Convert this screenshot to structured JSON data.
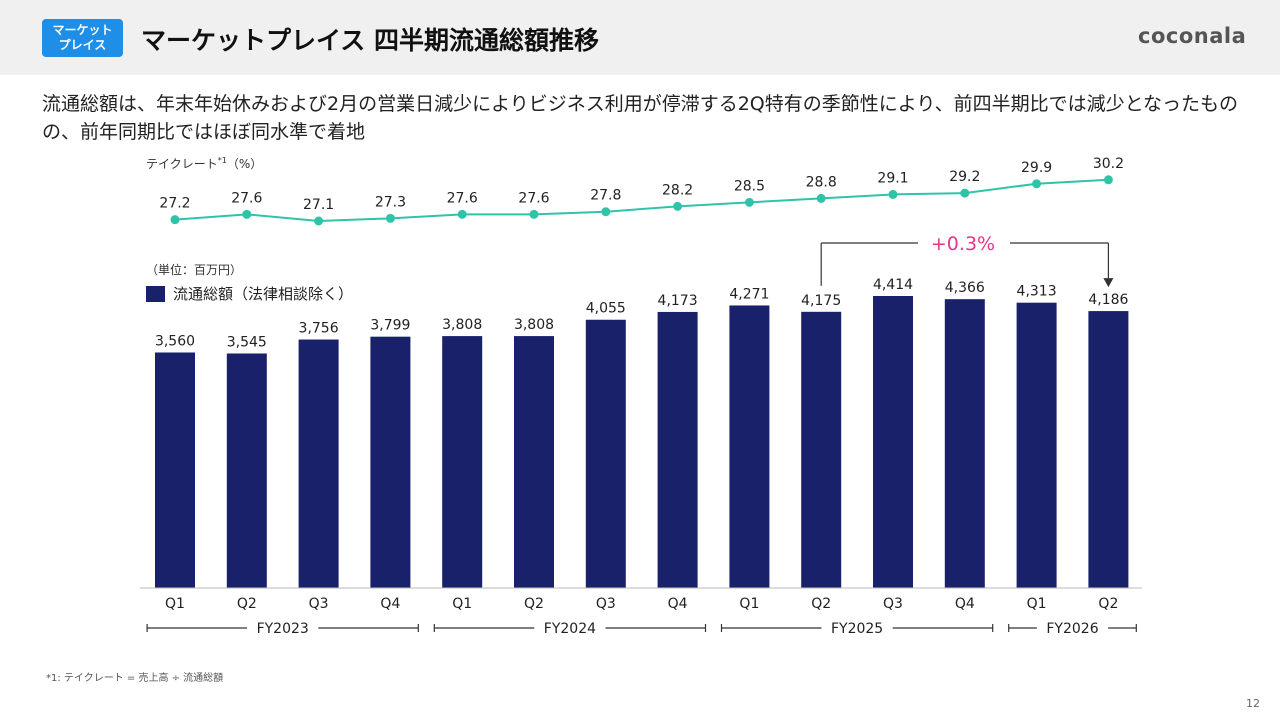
{
  "header": {
    "badge_line1": "マーケット",
    "badge_line2": "プレイス",
    "title": "マーケットプレイス 四半期流通総額推移",
    "logo": "coconala"
  },
  "headline": "流通総額は、年末年始休みおよび2月の営業日減少によりビジネス利用が停滞する2Q特有の季節性により、前四半期比では減少となったものの、前年同期比ではほぼ同水準で着地",
  "take_rate_label": "テイクレート",
  "take_rate_note": "*1",
  "take_rate_unit": "（%）",
  "unit_label": "（単位：百万円）",
  "annotation": "+0.3%",
  "footnote": "*1: テイクレート = 売上高 ÷ 流通総額",
  "page_number": "12",
  "colors": {
    "bar": "#1a216b",
    "line": "#2ec4a8",
    "annotation": "#e8358a",
    "badge": "#1e8ee6",
    "header_bg": "#f0f0f0"
  },
  "chart_data": [
    {
      "type": "line",
      "categories": [
        "Q1",
        "Q2",
        "Q3",
        "Q4",
        "Q1",
        "Q2",
        "Q3",
        "Q4",
        "Q1",
        "Q2",
        "Q3",
        "Q4",
        "Q1",
        "Q2"
      ],
      "series": [
        {
          "name": "テイクレート",
          "values": [
            27.2,
            27.6,
            27.1,
            27.3,
            27.6,
            27.6,
            27.8,
            28.2,
            28.5,
            28.8,
            29.1,
            29.2,
            29.9,
            30.2
          ],
          "labels": [
            "27.2",
            "27.6",
            "27.1",
            "27.3",
            "27.6",
            "27.6",
            "27.8",
            "28.2",
            "28.5",
            "28.8",
            "29.1",
            "29.2",
            "29.9",
            "30.2"
          ]
        }
      ],
      "ylabel": "（%）"
    },
    {
      "type": "bar",
      "categories": [
        "Q1",
        "Q2",
        "Q3",
        "Q4",
        "Q1",
        "Q2",
        "Q3",
        "Q4",
        "Q1",
        "Q2",
        "Q3",
        "Q4",
        "Q1",
        "Q2"
      ],
      "groups": [
        {
          "label": "FY2023",
          "count": 4
        },
        {
          "label": "FY2024",
          "count": 4
        },
        {
          "label": "FY2025",
          "count": 4
        },
        {
          "label": "FY2026",
          "count": 2
        }
      ],
      "series": [
        {
          "name": "流通総額（法律相談除く）",
          "values": [
            3560,
            3545,
            3756,
            3799,
            3808,
            3808,
            4055,
            4173,
            4271,
            4175,
            4414,
            4366,
            4313,
            4186
          ],
          "labels": [
            "3,560",
            "3,545",
            "3,756",
            "3,799",
            "3,808",
            "3,808",
            "4,055",
            "4,173",
            "4,271",
            "4,175",
            "4,414",
            "4,366",
            "4,313",
            "4,186"
          ]
        }
      ],
      "ylabel": "（単位：百万円）",
      "ylim": [
        0,
        4414
      ]
    }
  ]
}
